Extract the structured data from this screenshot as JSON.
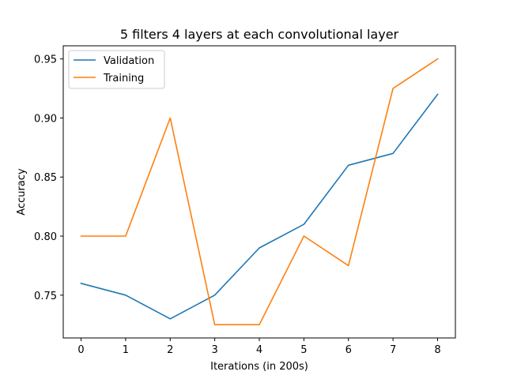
{
  "chart_data": {
    "type": "line",
    "title": "5 filters 4 layers at each convolutional layer",
    "xlabel": "Iterations (in 200s)",
    "ylabel": "Accuracy",
    "x": [
      0,
      1,
      2,
      3,
      4,
      5,
      6,
      7,
      8
    ],
    "xlim": [
      -0.4,
      8.4
    ],
    "ylim": [
      0.7138,
      0.9611
    ],
    "xticks": [
      0,
      1,
      2,
      3,
      4,
      5,
      6,
      7,
      8
    ],
    "yticks": [
      0.75,
      0.8,
      0.85,
      0.9,
      0.95
    ],
    "ytick_labels": [
      "0.75",
      "0.80",
      "0.85",
      "0.90",
      "0.95"
    ],
    "grid": false,
    "legend_position": "top-left",
    "series": [
      {
        "name": "Validation",
        "color": "#1f77b4",
        "values": [
          0.76,
          0.75,
          0.73,
          0.75,
          0.79,
          0.81,
          0.86,
          0.87,
          0.92
        ]
      },
      {
        "name": "Training",
        "color": "#ff7f0e",
        "values": [
          0.8,
          0.8,
          0.9,
          0.725,
          0.725,
          0.8,
          0.775,
          0.925,
          0.95
        ]
      }
    ]
  }
}
